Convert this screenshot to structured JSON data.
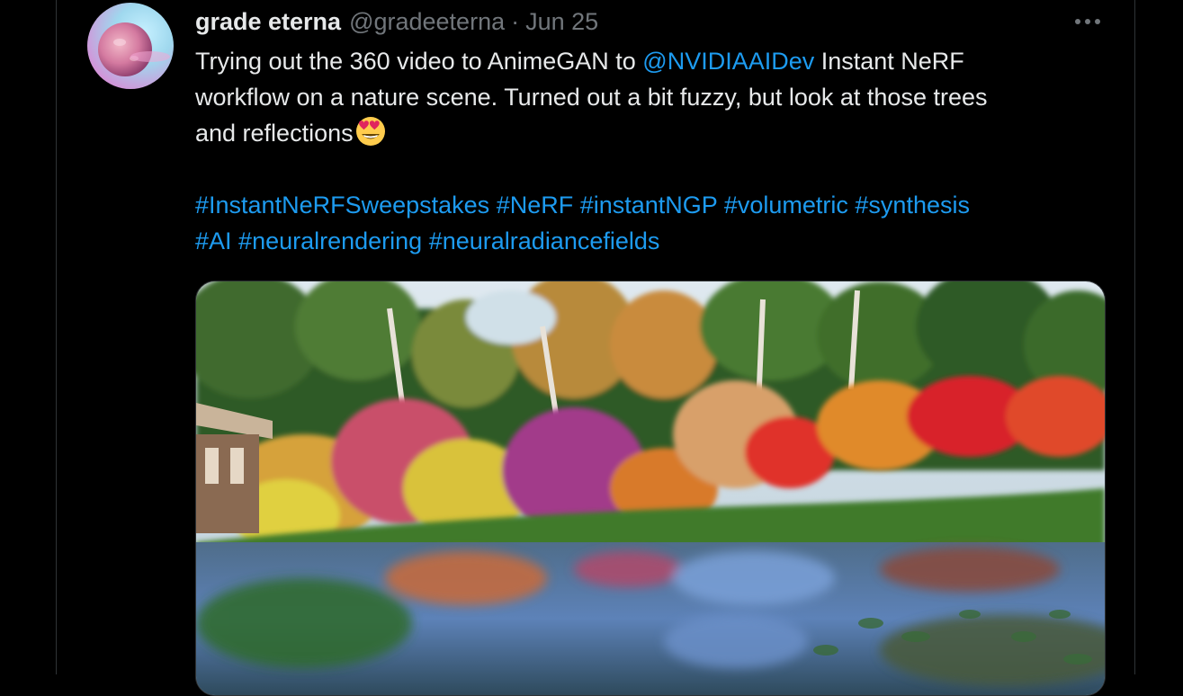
{
  "tweet": {
    "display_name": "grade eterna",
    "handle": "@gradeeterna",
    "separator": "·",
    "date": "Jun 25",
    "text_part1": "Trying out the 360 video to AnimeGAN to ",
    "mention": "@NVIDIAAIDev",
    "text_part2": " Instant NeRF\nworkflow on a nature scene. Turned out a bit fuzzy, but look at those trees\nand reflections",
    "hashtags": [
      "#InstantNeRFSweepstakes",
      "#NeRF",
      "#instantNGP",
      "#volumetric",
      "#synthesis",
      "#AI",
      "#neuralrendering",
      "#neuralradiancefields"
    ]
  },
  "icons": {
    "more": "more-options-icon",
    "emoji": "heart-eyes-emoji-icon",
    "avatar": "moon-avatar"
  },
  "colors": {
    "background": "#000000",
    "text": "#e7e9ea",
    "secondary": "#71767b",
    "link": "#1d9bf0",
    "border": "#2f3336"
  }
}
